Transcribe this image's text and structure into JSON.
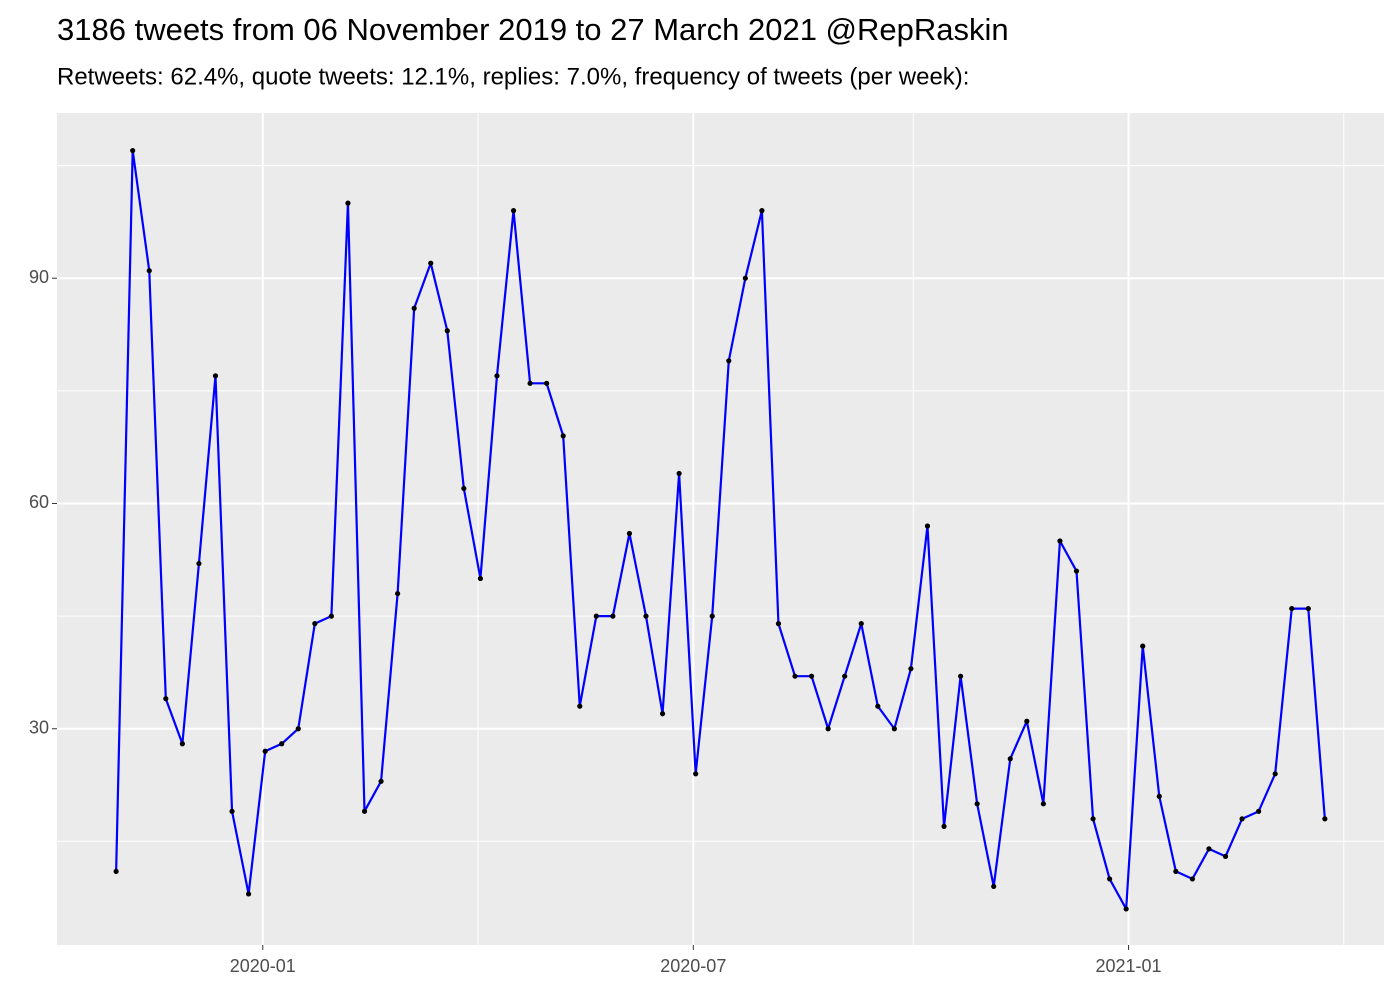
{
  "chart_data": {
    "type": "line",
    "title": "3186 tweets from 06 November 2019 to 27 March 2021 @RepRaskin",
    "subtitle": "Retweets: 62.4%, quote tweets: 12.1%, replies: 7.0%, frequency of tweets (per week):",
    "x": [
      "2019-10-31",
      "2019-11-07",
      "2019-11-14",
      "2019-11-21",
      "2019-11-28",
      "2019-12-05",
      "2019-12-12",
      "2019-12-19",
      "2019-12-26",
      "2020-01-02",
      "2020-01-09",
      "2020-01-16",
      "2020-01-23",
      "2020-01-30",
      "2020-02-06",
      "2020-02-13",
      "2020-02-20",
      "2020-02-27",
      "2020-03-05",
      "2020-03-12",
      "2020-03-19",
      "2020-03-26",
      "2020-04-02",
      "2020-04-09",
      "2020-04-16",
      "2020-04-23",
      "2020-04-30",
      "2020-05-07",
      "2020-05-14",
      "2020-05-21",
      "2020-05-28",
      "2020-06-04",
      "2020-06-11",
      "2020-06-18",
      "2020-06-25",
      "2020-07-02",
      "2020-07-09",
      "2020-07-16",
      "2020-07-23",
      "2020-07-30",
      "2020-08-06",
      "2020-08-13",
      "2020-08-20",
      "2020-08-27",
      "2020-09-03",
      "2020-09-10",
      "2020-09-17",
      "2020-09-24",
      "2020-10-01",
      "2020-10-08",
      "2020-10-15",
      "2020-10-22",
      "2020-10-29",
      "2020-11-05",
      "2020-11-12",
      "2020-11-19",
      "2020-11-26",
      "2020-12-03",
      "2020-12-10",
      "2020-12-17",
      "2020-12-24",
      "2020-12-31",
      "2021-01-07",
      "2021-01-14",
      "2021-01-21",
      "2021-01-28",
      "2021-02-04",
      "2021-02-11",
      "2021-02-18",
      "2021-02-25",
      "2021-03-04",
      "2021-03-11",
      "2021-03-18",
      "2021-03-25"
    ],
    "series": [
      {
        "color": "#0000ff",
        "point_color": "#000000",
        "values": [
          11,
          107,
          91,
          34,
          28,
          52,
          77,
          19,
          8,
          27,
          28,
          30,
          44,
          45,
          100,
          19,
          23,
          48,
          86,
          92,
          83,
          62,
          50,
          77,
          99,
          76,
          76,
          69,
          33,
          45,
          45,
          56,
          45,
          32,
          64,
          24,
          45,
          79,
          90,
          99,
          44,
          37,
          37,
          30,
          37,
          44,
          33,
          30,
          38,
          57,
          17,
          37,
          20,
          9,
          26,
          31,
          20,
          55,
          51,
          18,
          10,
          6,
          41,
          21,
          11,
          10,
          14,
          13,
          18,
          19,
          24,
          46,
          46,
          18
        ]
      }
    ],
    "xlim": [
      "2019-10-06",
      "2021-04-19"
    ],
    "xticks": [
      {
        "value": "2020-01-01",
        "label": "2020-01"
      },
      {
        "value": "2020-07-01",
        "label": "2020-07"
      },
      {
        "value": "2021-01-01",
        "label": "2021-01"
      }
    ],
    "ylim": [
      1.2,
      112
    ],
    "yticks": [
      30,
      60,
      90
    ],
    "grid": true
  }
}
